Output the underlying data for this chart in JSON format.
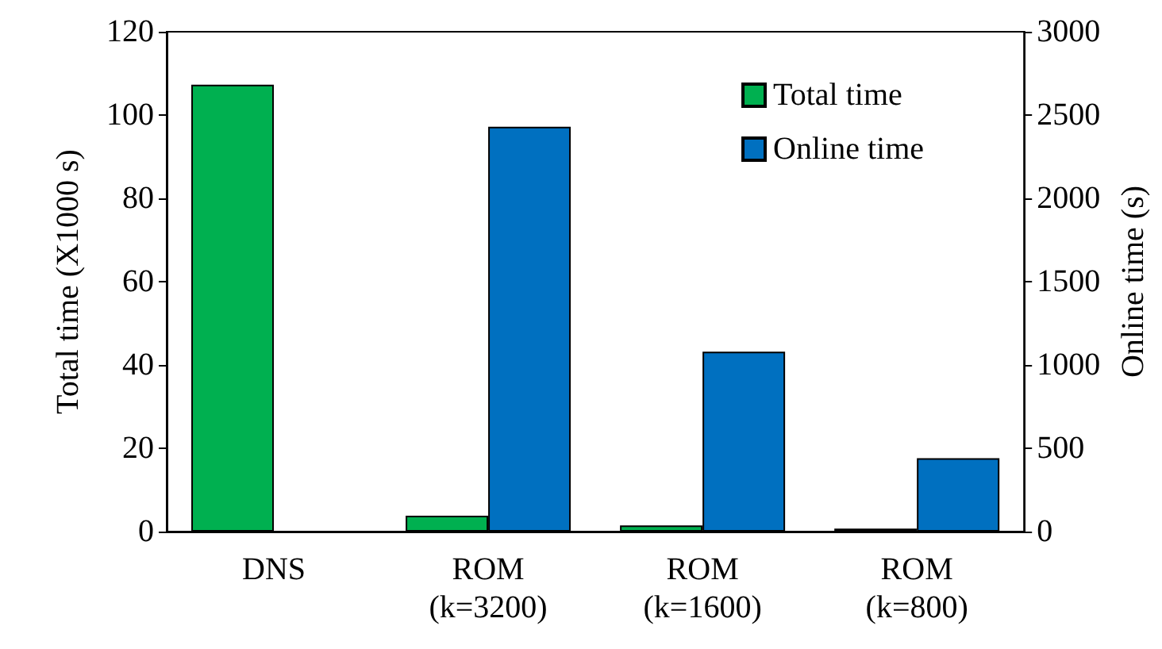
{
  "chart_data": {
    "type": "bar",
    "categories": [
      "DNS",
      "ROM\n(k=3200)",
      "ROM\n(k=1600)",
      "ROM\n(k=800)"
    ],
    "series": [
      {
        "name": "Total time",
        "color": "#00b050",
        "values": [
          107.3,
          3.8,
          1.5,
          0.7
        ]
      },
      {
        "name": "Online time",
        "color": "#0070c0",
        "axis": "y2",
        "values": [
          null,
          2430,
          1080,
          440
        ]
      }
    ],
    "ylabel": "Total time (X1000 s)",
    "y2label": "Online time (s)",
    "ylim": [
      0,
      120
    ],
    "yticks": [
      0,
      20,
      40,
      60,
      80,
      100,
      120
    ],
    "y2lim": [
      0,
      3000
    ],
    "y2ticks": [
      0,
      500,
      1000,
      1500,
      2000,
      2500,
      3000
    ],
    "legend": "top right",
    "grid": false
  }
}
